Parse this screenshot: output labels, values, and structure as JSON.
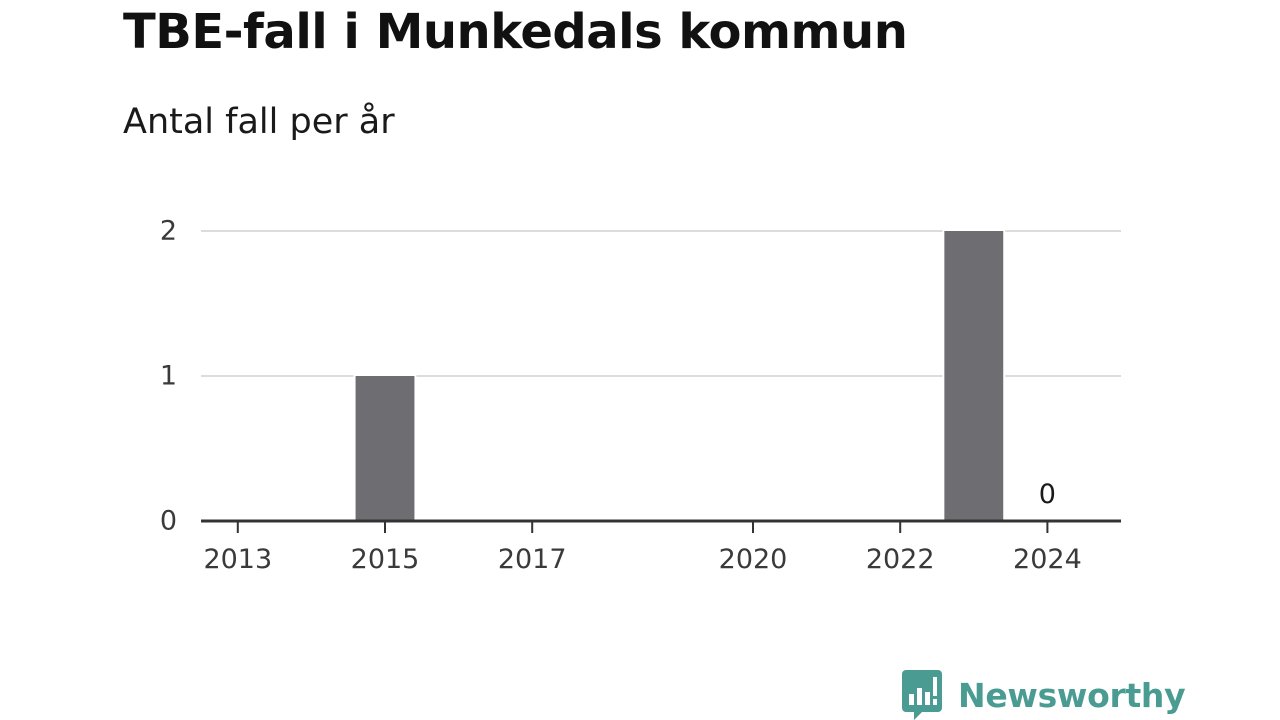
{
  "chart_data": {
    "type": "bar",
    "title": "TBE-fall i Munkedals kommun",
    "subtitle": "Antal fall per år",
    "x": [
      2013,
      2014,
      2015,
      2016,
      2017,
      2018,
      2019,
      2020,
      2021,
      2022,
      2023,
      2024
    ],
    "values": [
      0,
      0,
      1,
      0,
      0,
      0,
      0,
      0,
      0,
      0,
      2,
      0
    ],
    "x_ticks": [
      2013,
      2015,
      2017,
      2020,
      2022,
      2024
    ],
    "y_ticks": [
      0,
      1,
      2
    ],
    "ylim": [
      0,
      2
    ],
    "xlim": [
      2012.5,
      2025
    ],
    "grid": true,
    "bar_color": "#6e6d72",
    "annotations": [
      {
        "x": 2024,
        "text": "0"
      }
    ]
  },
  "logo": {
    "name": "Newsworthy",
    "color": "#4a9c93",
    "icon": "bar-chart-speech-bubble-icon"
  }
}
